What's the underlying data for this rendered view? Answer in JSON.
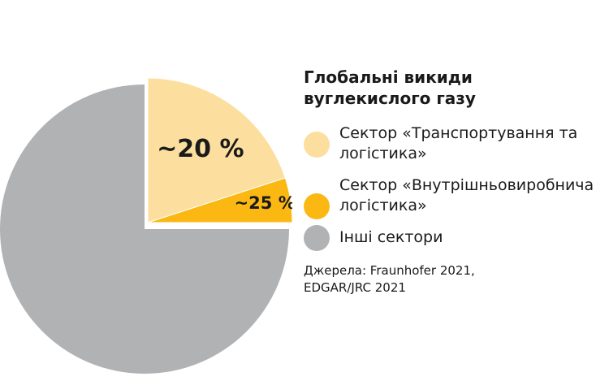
{
  "chart_data": {
    "type": "pie",
    "title": "Глобальні викиди вуглекислого газу",
    "slices": [
      {
        "label": "Сектор «Транспортування та логістика»",
        "value": 20,
        "data_label": "~20 %",
        "color": "#fcdf9e",
        "exploded": true
      },
      {
        "label": "Сектор «Внутрішньовиробнича логістика»",
        "value": 5,
        "data_label": "~25 %",
        "color": "#fbb813",
        "exploded": true
      },
      {
        "label": "Інші сектори",
        "value": 75,
        "data_label": "",
        "color": "#b1b2b4",
        "exploded": false
      }
    ],
    "legend_position": "right"
  },
  "legend": {
    "title": "Глобальні викиди вуглекислого газу",
    "items": [
      {
        "label": "Сектор «Транспортування та логістика»",
        "color": "#fcdf9e"
      },
      {
        "label": "Сектор «Внутрішньовиробнича логістика»",
        "color": "#fbb813"
      },
      {
        "label": "Інші сектори",
        "color": "#b1b2b4"
      }
    ]
  },
  "source": "Джерела: Fraunhofer 2021, EDGAR/JRC 2021"
}
